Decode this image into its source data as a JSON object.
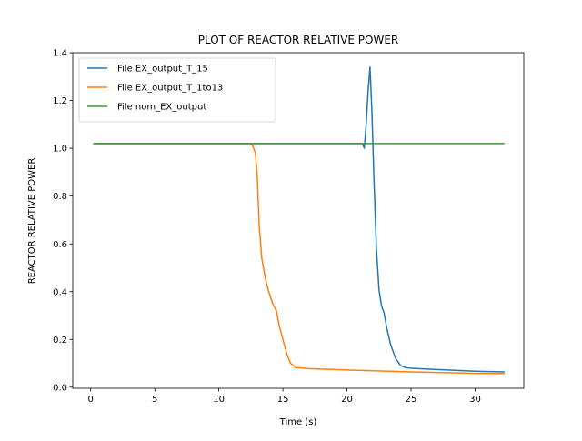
{
  "chart_data": {
    "type": "line",
    "title": "PLOT OF REACTOR RELATIVE POWER",
    "xlabel": "Time (s)",
    "ylabel": "REACTOR RELATIVE POWER",
    "xlim": [
      -1.4,
      33.8
    ],
    "ylim": [
      -0.0045,
      1.4
    ],
    "xticks": [
      0,
      5,
      10,
      15,
      20,
      25,
      30
    ],
    "yticks": [
      0.0,
      0.2,
      0.4,
      0.6,
      0.8,
      1.0,
      1.2,
      1.4
    ],
    "xtick_labels": [
      "0",
      "5",
      "10",
      "15",
      "20",
      "25",
      "30"
    ],
    "ytick_labels": [
      "0.0",
      "0.2",
      "0.4",
      "0.6",
      "0.8",
      "1.0",
      "1.2",
      "1.4"
    ],
    "grid": false,
    "legend_position": "upper-left",
    "series": [
      {
        "name": "File EX_output_T_15",
        "color": "#1f77b4",
        "x": [
          0.2,
          5,
          10,
          15,
          20,
          21.2,
          21.35,
          21.5,
          21.65,
          21.8,
          21.95,
          22.1,
          22.3,
          22.5,
          22.7,
          22.9,
          23.1,
          23.4,
          23.8,
          24.2,
          24.6,
          25,
          27,
          30,
          32.3
        ],
        "y": [
          1.02,
          1.02,
          1.02,
          1.02,
          1.02,
          1.02,
          1.0,
          1.1,
          1.24,
          1.34,
          1.15,
          0.88,
          0.58,
          0.41,
          0.34,
          0.31,
          0.25,
          0.18,
          0.12,
          0.09,
          0.082,
          0.079,
          0.074,
          0.067,
          0.064
        ]
      },
      {
        "name": "File EX_output_T_1to13",
        "color": "#ff7f0e",
        "x": [
          0.2,
          5,
          10,
          12.4,
          12.65,
          12.85,
          13.0,
          13.15,
          13.35,
          13.65,
          13.9,
          14.2,
          14.5,
          14.7,
          15.0,
          15.3,
          15.6,
          16.0,
          17,
          20,
          25,
          30,
          32.3
        ],
        "y": [
          1.02,
          1.02,
          1.02,
          1.02,
          1.01,
          0.98,
          0.88,
          0.68,
          0.54,
          0.45,
          0.4,
          0.35,
          0.32,
          0.26,
          0.2,
          0.14,
          0.1,
          0.082,
          0.078,
          0.072,
          0.064,
          0.058,
          0.057
        ]
      },
      {
        "name": "File nom_EX_output",
        "color": "#2ca02c",
        "x": [
          0.2,
          5,
          10,
          15,
          20,
          25,
          30,
          32.3
        ],
        "y": [
          1.02,
          1.02,
          1.02,
          1.02,
          1.02,
          1.02,
          1.02,
          1.02
        ]
      }
    ]
  }
}
